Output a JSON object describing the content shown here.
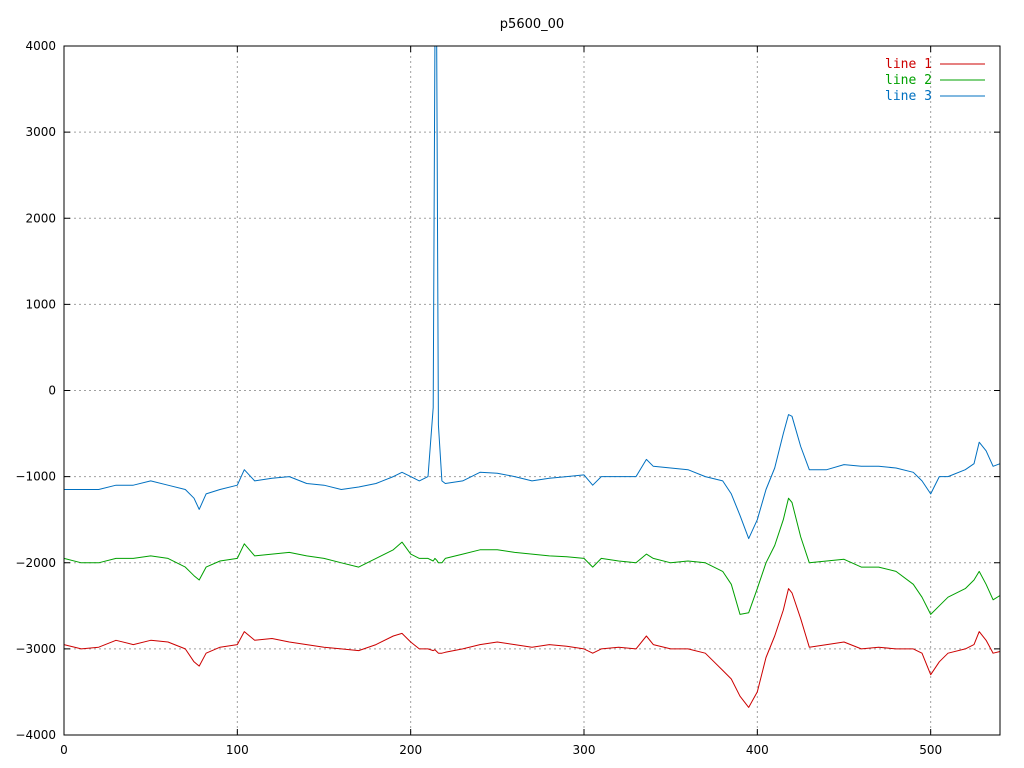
{
  "chart_data": {
    "type": "line",
    "title": "p5600_00",
    "xlabel": "",
    "ylabel": "",
    "xlim": [
      0,
      540
    ],
    "ylim": [
      -4000,
      4000
    ],
    "x_ticks": [
      0,
      100,
      200,
      300,
      400,
      500
    ],
    "y_ticks": [
      -4000,
      -3000,
      -2000,
      -1000,
      0,
      1000,
      2000,
      3000,
      4000
    ],
    "y_tick_labels": [
      "−4000",
      "−3000",
      "−2000",
      "−1000",
      "0",
      "1000",
      "2000",
      "3000",
      "4000"
    ],
    "grid": true,
    "legend_position": "top-right",
    "x": [
      0,
      10,
      20,
      30,
      40,
      50,
      60,
      70,
      75,
      78,
      82,
      90,
      100,
      104,
      110,
      120,
      130,
      140,
      150,
      160,
      170,
      180,
      190,
      195,
      200,
      205,
      210,
      213,
      214,
      215,
      216,
      218,
      220,
      230,
      240,
      250,
      260,
      270,
      280,
      290,
      300,
      305,
      310,
      320,
      330,
      336,
      340,
      350,
      360,
      370,
      380,
      385,
      390,
      395,
      400,
      405,
      410,
      415,
      418,
      420,
      425,
      430,
      440,
      450,
      460,
      470,
      480,
      490,
      495,
      500,
      505,
      510,
      520,
      525,
      528,
      532,
      536,
      540
    ],
    "series": [
      {
        "name": "line 1",
        "color": "#cc0000",
        "values": [
          -2950,
          -3000,
          -2980,
          -2900,
          -2950,
          -2900,
          -2920,
          -3000,
          -3150,
          -3200,
          -3050,
          -2980,
          -2950,
          -2800,
          -2900,
          -2880,
          -2920,
          -2950,
          -2980,
          -3000,
          -3020,
          -2950,
          -2850,
          -2820,
          -2920,
          -3000,
          -3000,
          -3020,
          -3010,
          -3030,
          -3050,
          -3050,
          -3040,
          -3000,
          -2950,
          -2920,
          -2950,
          -2980,
          -2950,
          -2970,
          -3000,
          -3050,
          -3000,
          -2980,
          -3000,
          -2850,
          -2950,
          -3000,
          -3000,
          -3050,
          -3250,
          -3350,
          -3550,
          -3680,
          -3500,
          -3100,
          -2850,
          -2550,
          -2300,
          -2350,
          -2650,
          -2980,
          -2950,
          -2920,
          -3000,
          -2980,
          -3000,
          -3000,
          -3050,
          -3300,
          -3150,
          -3050,
          -3000,
          -2950,
          -2800,
          -2900,
          -3050,
          -3030
        ]
      },
      {
        "name": "line 2",
        "color": "#00a000",
        "values": [
          -1950,
          -2000,
          -2000,
          -1950,
          -1950,
          -1920,
          -1950,
          -2050,
          -2150,
          -2200,
          -2050,
          -1980,
          -1950,
          -1780,
          -1920,
          -1900,
          -1880,
          -1920,
          -1950,
          -2000,
          -2050,
          -1950,
          -1850,
          -1760,
          -1900,
          -1950,
          -1950,
          -1980,
          -1950,
          -1970,
          -2000,
          -2000,
          -1950,
          -1900,
          -1850,
          -1850,
          -1880,
          -1900,
          -1920,
          -1930,
          -1950,
          -2050,
          -1950,
          -1980,
          -2000,
          -1900,
          -1950,
          -2000,
          -1980,
          -2000,
          -2100,
          -2250,
          -2600,
          -2580,
          -2300,
          -2000,
          -1800,
          -1500,
          -1250,
          -1300,
          -1700,
          -2000,
          -1980,
          -1960,
          -2050,
          -2050,
          -2100,
          -2250,
          -2400,
          -2600,
          -2500,
          -2400,
          -2300,
          -2200,
          -2100,
          -2250,
          -2430,
          -2380
        ]
      },
      {
        "name": "line 3",
        "color": "#0070c0",
        "values": [
          -1150,
          -1150,
          -1150,
          -1100,
          -1100,
          -1050,
          -1100,
          -1150,
          -1250,
          -1380,
          -1200,
          -1150,
          -1100,
          -920,
          -1050,
          -1020,
          -1000,
          -1080,
          -1100,
          -1150,
          -1120,
          -1080,
          -1000,
          -950,
          -1000,
          -1050,
          -1000,
          -200,
          4000,
          4000,
          -400,
          -1050,
          -1080,
          -1050,
          -950,
          -960,
          -1000,
          -1050,
          -1020,
          -1000,
          -980,
          -1100,
          -1000,
          -1000,
          -1000,
          -800,
          -880,
          -900,
          -920,
          -1000,
          -1050,
          -1200,
          -1450,
          -1720,
          -1500,
          -1150,
          -900,
          -500,
          -280,
          -300,
          -650,
          -920,
          -920,
          -860,
          -880,
          -880,
          -900,
          -950,
          -1050,
          -1200,
          -1000,
          -1000,
          -920,
          -850,
          -600,
          -700,
          -880,
          -850
        ]
      }
    ]
  }
}
